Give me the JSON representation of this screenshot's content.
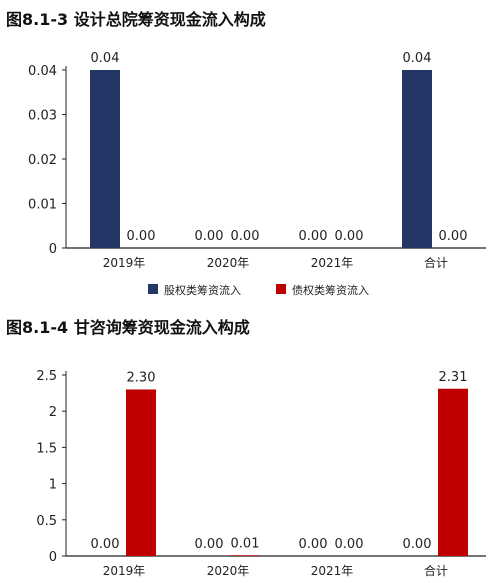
{
  "figures": {
    "fig1_title": "图8.1-3 设计总院筹资现金流入构成",
    "fig2_title": "图8.1-4 甘咨询筹资现金流入构成"
  },
  "colors": {
    "equity": "#243666",
    "debt": "#c00000",
    "axis": "#222222"
  },
  "chart_data": [
    {
      "type": "bar",
      "title": "图8.1-3 设计总院筹资现金流入构成",
      "categories": [
        "2019年",
        "2020年",
        "2021年",
        "合计"
      ],
      "series": [
        {
          "name": "股权类筹资流入",
          "values": [
            0.04,
            0.0,
            0.0,
            0.04
          ],
          "labels": [
            "0.04",
            "",
            "0.00",
            "0.04"
          ]
        },
        {
          "name": "债权类筹资流入",
          "values": [
            0.0,
            0.0,
            0.0,
            0.0
          ],
          "labels": [
            "0.00",
            "0.00",
            "0.00",
            "0.00"
          ]
        }
      ],
      "series_label_overrides": [
        [
          "0.04",
          "0.00",
          "0.00",
          "0.04"
        ],
        [
          "0.00",
          "0.00",
          "0.00",
          "0.00"
        ]
      ],
      "yticks": [
        "0",
        "0.01",
        "0.02",
        "0.03",
        "0.04"
      ],
      "ylim": [
        0,
        0.045
      ],
      "legend": "bottom",
      "grid": false
    },
    {
      "type": "bar",
      "title": "图8.1-4 甘咨询筹资现金流入构成",
      "categories": [
        "2019年",
        "2020年",
        "2021年",
        "合计"
      ],
      "series": [
        {
          "name": "股权类筹资流入",
          "values": [
            0.0,
            0.0,
            0.0,
            0.0
          ],
          "labels": [
            "0.00",
            "0.00",
            "0.00",
            "0.00"
          ]
        },
        {
          "name": "债权类筹资流入",
          "values": [
            2.3,
            0.01,
            0.0,
            2.31
          ],
          "labels": [
            "2.30",
            "0.01",
            "0.00",
            "2.31"
          ]
        }
      ],
      "yticks": [
        "0",
        "0.5",
        "1",
        "1.5",
        "2",
        "2.5"
      ],
      "ylim": [
        0,
        2.5
      ],
      "legend": "none",
      "grid": false
    }
  ]
}
